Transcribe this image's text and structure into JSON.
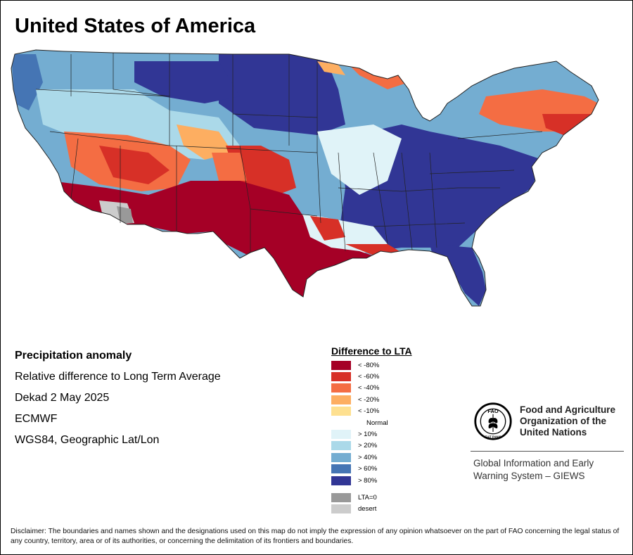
{
  "title": "United States of America",
  "info": {
    "heading": "Precipitation anomaly",
    "line1": "Relative difference to Long Term Average",
    "line2": "Dekad 2 May 2025",
    "line3": "ECMWF",
    "line4": "WGS84, Geographic Lat/Lon"
  },
  "legend": {
    "title": "Difference to LTA",
    "items": [
      {
        "label": "< -80%",
        "color": "#a50026"
      },
      {
        "label": "< -60%",
        "color": "#d73027"
      },
      {
        "label": "< -40%",
        "color": "#f46d43"
      },
      {
        "label": "< -20%",
        "color": "#fdae61"
      },
      {
        "label": "< -10%",
        "color": "#fee090"
      },
      {
        "label": "Normal",
        "color": "#ffffff"
      },
      {
        "label": "> 10%",
        "color": "#e0f3f8"
      },
      {
        "label": "> 20%",
        "color": "#abd9e9"
      },
      {
        "label": "> 40%",
        "color": "#74add1"
      },
      {
        "label": "> 60%",
        "color": "#4575b4"
      },
      {
        "label": "> 80%",
        "color": "#313695"
      }
    ],
    "extra": [
      {
        "label": "LTA=0",
        "color": "#999999"
      },
      {
        "label": "desert",
        "color": "#cccccc"
      }
    ]
  },
  "fao": {
    "name_line1": "Food and Agriculture",
    "name_line2": "Organization of the",
    "name_line3": "United Nations",
    "system_line1": "Global Information and Early",
    "system_line2": "Warning System – GIEWS",
    "logo_letters": "FAO",
    "logo_motto": "FIAT PANIS"
  },
  "disclaimer": "Disclaimer: The boundaries and names shown and the designations used on this map do not imply the expression of any opinion whatsoever on the part of FAO concerning the legal status of any country, territory, area or of its authorities, or concerning the delimitation of its frontiers and boundaries."
}
